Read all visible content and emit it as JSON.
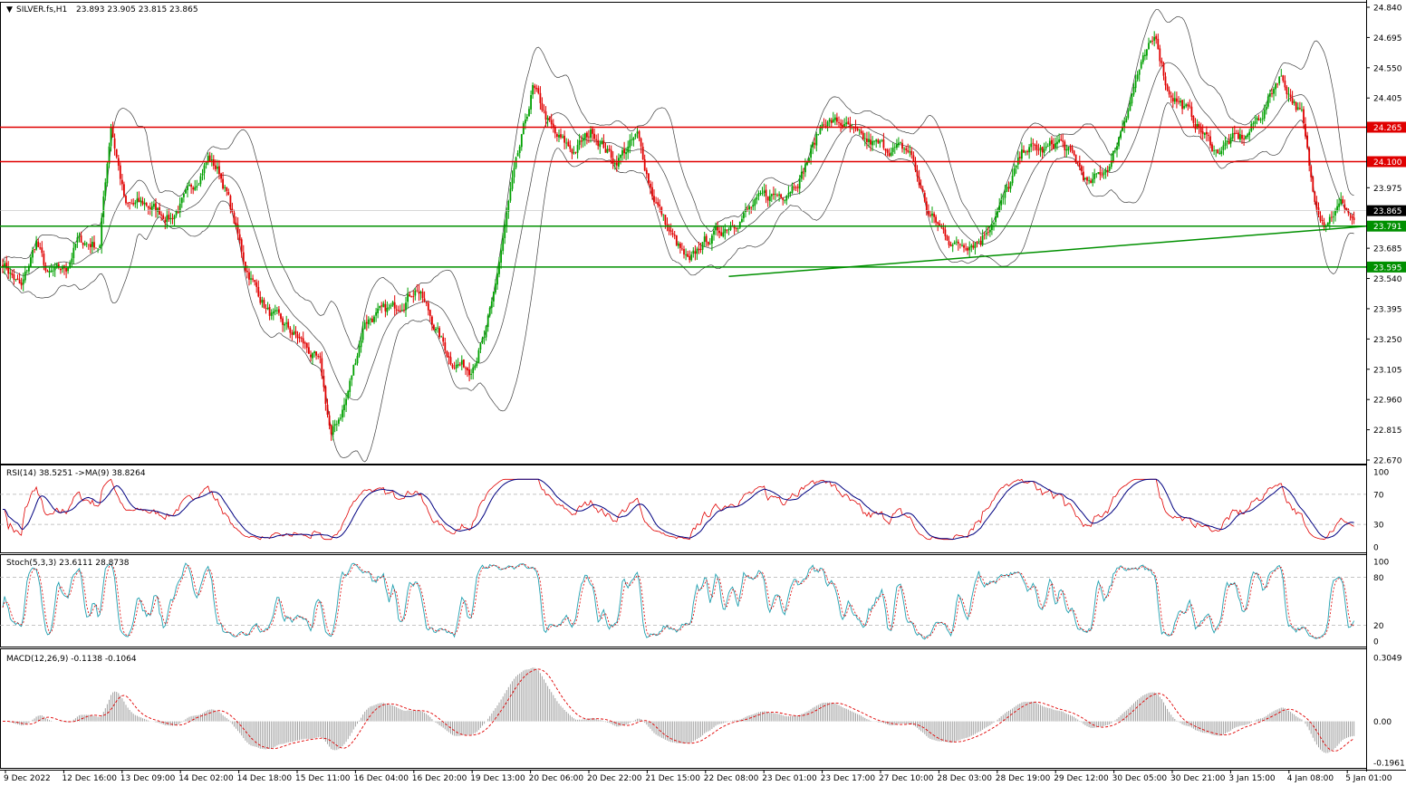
{
  "chart_data": {
    "type": "candlestick",
    "symbol_label": "SILVER.fs,H1",
    "ohlc_header": "23.893 23.905 23.815 23.865",
    "header_arrow": "▼",
    "price_axis": {
      "ylim": [
        22.67,
        24.84
      ],
      "ticks": [
        "24.840",
        "24.695",
        "24.550",
        "24.405",
        "24.265",
        "24.100",
        "23.975",
        "23.865",
        "23.791",
        "23.685",
        "23.595",
        "23.540",
        "23.395",
        "23.250",
        "23.105",
        "22.960",
        "22.815",
        "22.670"
      ]
    },
    "time_axis": {
      "labels": [
        "9 Dec 2022",
        "12 Dec 16:00",
        "13 Dec 09:00",
        "14 Dec 02:00",
        "14 Dec 18:00",
        "15 Dec 11:00",
        "16 Dec 04:00",
        "16 Dec 20:00",
        "19 Dec 13:00",
        "20 Dec 06:00",
        "20 Dec 22:00",
        "21 Dec 15:00",
        "22 Dec 08:00",
        "23 Dec 01:00",
        "23 Dec 17:00",
        "27 Dec 10:00",
        "28 Dec 03:00",
        "28 Dec 19:00",
        "29 Dec 12:00",
        "30 Dec 05:00",
        "30 Dec 21:00",
        "3 Jan 15:00",
        "4 Jan 08:00",
        "5 Jan 01:00"
      ]
    },
    "close_anchors": [
      [
        0,
        23.62
      ],
      [
        10,
        23.49
      ],
      [
        18,
        23.72
      ],
      [
        24,
        23.55
      ],
      [
        34,
        23.59
      ],
      [
        40,
        23.72
      ],
      [
        52,
        23.7
      ],
      [
        54,
        23.92
      ],
      [
        58,
        24.28
      ],
      [
        66,
        23.88
      ],
      [
        76,
        23.9
      ],
      [
        90,
        23.83
      ],
      [
        100,
        23.95
      ],
      [
        110,
        24.12
      ],
      [
        116,
        24.05
      ],
      [
        120,
        23.95
      ],
      [
        130,
        23.6
      ],
      [
        142,
        23.38
      ],
      [
        160,
        23.24
      ],
      [
        170,
        23.12
      ],
      [
        176,
        22.78
      ],
      [
        184,
        22.96
      ],
      [
        194,
        23.34
      ],
      [
        210,
        23.4
      ],
      [
        222,
        23.5
      ],
      [
        232,
        23.3
      ],
      [
        240,
        23.15
      ],
      [
        250,
        23.11
      ],
      [
        258,
        23.25
      ],
      [
        262,
        23.4
      ],
      [
        272,
        23.95
      ],
      [
        284,
        24.45
      ],
      [
        296,
        24.22
      ],
      [
        306,
        24.15
      ],
      [
        316,
        24.25
      ],
      [
        328,
        24.1
      ],
      [
        340,
        24.22
      ],
      [
        348,
        23.95
      ],
      [
        358,
        23.75
      ],
      [
        368,
        23.6
      ],
      [
        374,
        23.7
      ],
      [
        386,
        23.78
      ],
      [
        396,
        23.84
      ],
      [
        408,
        23.93
      ],
      [
        418,
        23.95
      ],
      [
        428,
        24.04
      ],
      [
        440,
        24.3
      ],
      [
        450,
        24.28
      ],
      [
        460,
        24.2
      ],
      [
        472,
        24.17
      ],
      [
        486,
        24.15
      ],
      [
        496,
        23.85
      ],
      [
        510,
        23.7
      ],
      [
        524,
        23.73
      ],
      [
        536,
        23.91
      ],
      [
        548,
        24.17
      ],
      [
        558,
        24.15
      ],
      [
        566,
        24.2
      ],
      [
        576,
        24.09
      ],
      [
        582,
        23.98
      ],
      [
        594,
        24.1
      ],
      [
        608,
        24.52
      ],
      [
        618,
        24.7
      ],
      [
        624,
        24.45
      ],
      [
        634,
        24.35
      ],
      [
        642,
        24.25
      ],
      [
        650,
        24.15
      ],
      [
        658,
        24.2
      ],
      [
        666,
        24.22
      ],
      [
        676,
        24.35
      ],
      [
        684,
        24.52
      ],
      [
        690,
        24.42
      ],
      [
        696,
        24.32
      ],
      [
        702,
        23.95
      ],
      [
        708,
        23.82
      ],
      [
        718,
        23.9
      ],
      [
        724,
        23.82
      ]
    ],
    "current_price": "23.865",
    "support_resistance_lines": [
      {
        "price": 24.265,
        "label": "24.265",
        "color": "#e00000"
      },
      {
        "price": 24.1,
        "label": "24.100",
        "color": "#e00000"
      },
      {
        "price": 23.791,
        "label": "23.791",
        "color": "#009000"
      },
      {
        "price": 23.595,
        "label": "23.595",
        "color": "#009000"
      }
    ],
    "trendline": {
      "from": {
        "bar": 389,
        "price": 23.55
      },
      "to": {
        "bar": 730,
        "price": 23.79
      },
      "color": "#009000"
    },
    "indicators": {
      "rsi": {
        "label": "RSI(14) 38.5251 ->MA(9) 38.8264",
        "ylim": [
          0,
          100
        ],
        "ticks": [
          "100",
          "70",
          "30",
          "0"
        ],
        "levels": [
          70,
          30
        ]
      },
      "stoch": {
        "label": "Stoch(5,3,3) 23.6111 28.8738",
        "ylim": [
          0,
          100
        ],
        "ticks": [
          "100",
          "80",
          "20",
          "0"
        ],
        "levels": [
          80,
          20
        ]
      },
      "macd": {
        "label": "MACD(12,26,9) -0.1138 -0.1064",
        "ylim": [
          -0.1961,
          0.3049
        ],
        "ticks": [
          "0.3049",
          "0.00",
          "-0.1961"
        ]
      }
    },
    "colors": {
      "bull": "#00a000",
      "bear": "#e00000",
      "bands": "#404040",
      "rsi": "#e00000",
      "rsi_ma": "#000080",
      "stoch_main": "#20a0b0",
      "stoch_signal": "#e00000",
      "macd_hist": "#a0a0a0",
      "macd_signal": "#e00000"
    }
  }
}
